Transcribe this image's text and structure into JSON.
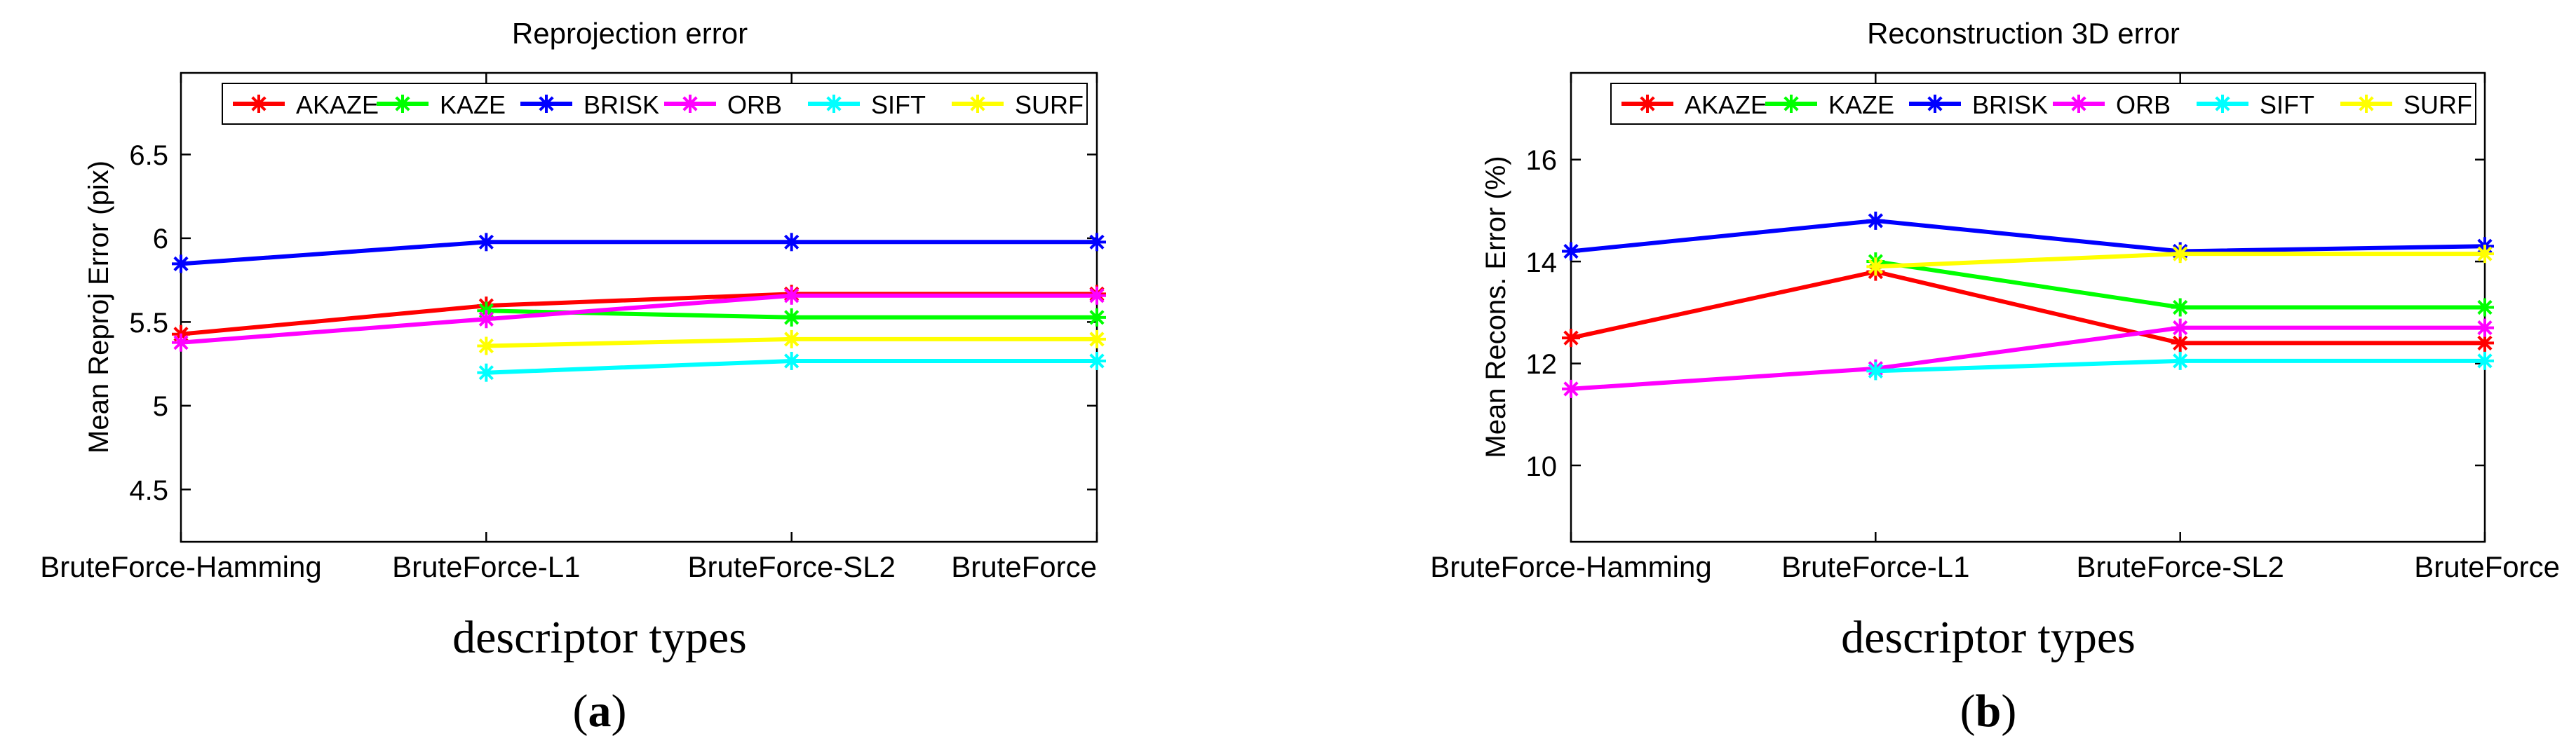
{
  "chart_data": [
    {
      "type": "line",
      "title": "Reprojection error",
      "xlabel": "descriptor types",
      "ylabel": "Mean Reproj Error (pix)",
      "panel_label": {
        "open": "(",
        "letter": "a",
        "close": ")"
      },
      "categories": [
        "BruteForce-Hamming",
        "BruteForce-L1",
        "BruteForce-SL2",
        "BruteForce"
      ],
      "ylim": [
        4.2,
        7.0
      ],
      "yticks": [
        4.5,
        5,
        5.5,
        6,
        6.5
      ],
      "ytick_labels": [
        "4.5",
        "5",
        "5.5",
        "6",
        "6.5"
      ],
      "grid": false,
      "legend_position": "top",
      "series": [
        {
          "name": "AKAZE",
          "color": "#ff0000",
          "values": [
            5.44,
            5.61,
            5.68,
            5.68
          ]
        },
        {
          "name": "KAZE",
          "color": "#00ff00",
          "values": [
            null,
            5.58,
            5.54,
            5.54
          ]
        },
        {
          "name": "BRISK",
          "color": "#0000ff",
          "values": [
            5.86,
            5.99,
            5.99,
            5.99
          ]
        },
        {
          "name": "ORB",
          "color": "#ff00ff",
          "values": [
            5.39,
            5.53,
            5.67,
            5.67
          ]
        },
        {
          "name": "SIFT",
          "color": "#00ffff",
          "values": [
            null,
            5.21,
            5.28,
            5.28
          ]
        },
        {
          "name": "SURF",
          "color": "#ffff00",
          "values": [
            null,
            5.37,
            5.41,
            5.41
          ]
        }
      ]
    },
    {
      "type": "line",
      "title": "Reconstruction 3D error",
      "xlabel": "descriptor types",
      "ylabel": "Mean Recons. Error (%)",
      "panel_label": {
        "open": "(",
        "letter": "b",
        "close": ")"
      },
      "categories": [
        "BruteForce-Hamming",
        "BruteForce-L1",
        "BruteForce-SL2",
        "BruteForce"
      ],
      "ylim": [
        8.5,
        17.7
      ],
      "yticks": [
        10,
        12,
        14,
        16
      ],
      "ytick_labels": [
        "10",
        "12",
        "14",
        "16"
      ],
      "grid": false,
      "legend_position": "top",
      "series": [
        {
          "name": "AKAZE",
          "color": "#ff0000",
          "values": [
            12.5,
            13.8,
            12.4,
            12.4
          ]
        },
        {
          "name": "KAZE",
          "color": "#00ff00",
          "values": [
            null,
            14.0,
            13.1,
            13.1
          ]
        },
        {
          "name": "BRISK",
          "color": "#0000ff",
          "values": [
            14.2,
            14.8,
            14.2,
            14.3
          ]
        },
        {
          "name": "ORB",
          "color": "#ff00ff",
          "values": [
            11.5,
            11.9,
            12.7,
            12.7
          ]
        },
        {
          "name": "SIFT",
          "color": "#00ffff",
          "values": [
            null,
            11.85,
            12.05,
            12.05
          ]
        },
        {
          "name": "SURF",
          "color": "#ffff00",
          "values": [
            null,
            13.9,
            14.15,
            14.15
          ]
        }
      ]
    }
  ]
}
